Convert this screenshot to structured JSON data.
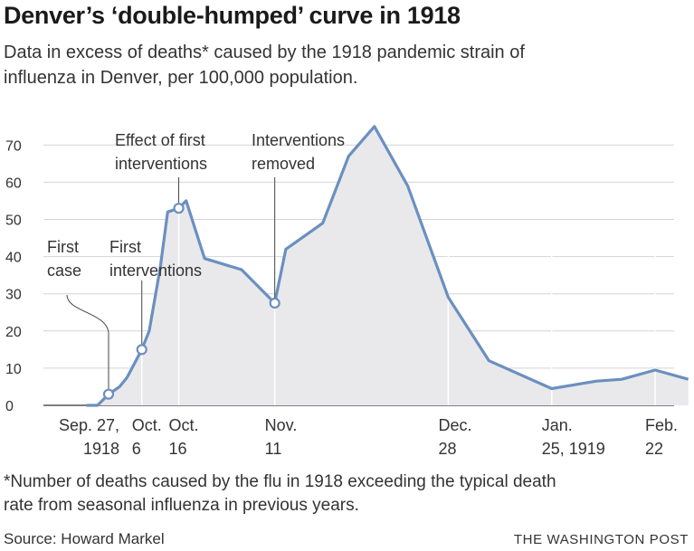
{
  "title": "Denver’s ‘double-humped’ curve in 1918",
  "subtitle": "Data in excess of deaths* caused by the 1918 pandemic strain of influenza in Denver, per 100,000 population.",
  "footnote": "*Number of deaths caused by the flu in 1918 exceeding the typical death rate from seasonal influenza in previous years.",
  "source": "Source: Howard Markel",
  "credit": "THE WASHINGTON POST",
  "chart_data": {
    "type": "area",
    "ylim": [
      0,
      75
    ],
    "yticks": [
      0,
      10,
      20,
      30,
      40,
      50,
      60,
      70
    ],
    "grid": true,
    "colors": {
      "line": "#6b8fc0",
      "fill": "#e9e9eb",
      "grid": "#d4d4d4"
    },
    "x_date_labels": [
      {
        "lines": [
          "Sep. 27,",
          "1918"
        ],
        "align": "right",
        "x": "1918-09-27"
      },
      {
        "lines": [
          "Oct.",
          "6"
        ],
        "align": "start",
        "x": "1918-10-06"
      },
      {
        "lines": [
          "Oct.",
          "16"
        ],
        "align": "start",
        "x": "1918-10-16"
      },
      {
        "lines": [
          "Nov.",
          "11"
        ],
        "align": "start",
        "x": "1918-11-11"
      },
      {
        "lines": [
          "Dec.",
          "28"
        ],
        "align": "start",
        "x": "1918-12-28"
      },
      {
        "lines": [
          "Jan.",
          "25, 1919"
        ],
        "align": "start",
        "x": "1919-01-25"
      },
      {
        "lines": [
          "Feb.",
          "22"
        ],
        "align": "start",
        "x": "1919-02-22"
      }
    ],
    "points": [
      {
        "x": "1918-09-21",
        "y": 0
      },
      {
        "x": "1918-09-24",
        "y": 0
      },
      {
        "x": "1918-09-27",
        "y": 3
      },
      {
        "x": "1918-09-30",
        "y": 5
      },
      {
        "x": "1918-10-02",
        "y": 7.5
      },
      {
        "x": "1918-10-06",
        "y": 15
      },
      {
        "x": "1918-10-08",
        "y": 20
      },
      {
        "x": "1918-10-11",
        "y": 37
      },
      {
        "x": "1918-10-13",
        "y": 52
      },
      {
        "x": "1918-10-16",
        "y": 53
      },
      {
        "x": "1918-10-18",
        "y": 55
      },
      {
        "x": "1918-10-23",
        "y": 39.5
      },
      {
        "x": "1918-11-02",
        "y": 36.5
      },
      {
        "x": "1918-11-11",
        "y": 27.5
      },
      {
        "x": "1918-11-14",
        "y": 42
      },
      {
        "x": "1918-11-24",
        "y": 49
      },
      {
        "x": "1918-12-01",
        "y": 67
      },
      {
        "x": "1918-12-08",
        "y": 75
      },
      {
        "x": "1918-12-17",
        "y": 59
      },
      {
        "x": "1918-12-28",
        "y": 29
      },
      {
        "x": "1919-01-08",
        "y": 12
      },
      {
        "x": "1919-01-25",
        "y": 4.5
      },
      {
        "x": "1919-02-06",
        "y": 6.5
      },
      {
        "x": "1919-02-13",
        "y": 7
      },
      {
        "x": "1919-02-22",
        "y": 9.5
      },
      {
        "x": "1919-03-03",
        "y": 7
      }
    ],
    "markers": [
      {
        "x": "1918-09-27",
        "y": 3
      },
      {
        "x": "1918-10-06",
        "y": 15
      },
      {
        "x": "1918-10-16",
        "y": 53
      },
      {
        "x": "1918-11-11",
        "y": 27.5
      }
    ],
    "annotations": [
      {
        "name": "annotation-first-case",
        "lines": [
          "First",
          "case"
        ]
      },
      {
        "name": "annotation-first-interventions",
        "lines": [
          "First",
          "interventions"
        ]
      },
      {
        "name": "annotation-effect-first-interventions",
        "lines": [
          "Effect of first",
          "interventions"
        ]
      },
      {
        "name": "annotation-interventions-removed",
        "lines": [
          "Interventions",
          "removed"
        ]
      }
    ]
  }
}
